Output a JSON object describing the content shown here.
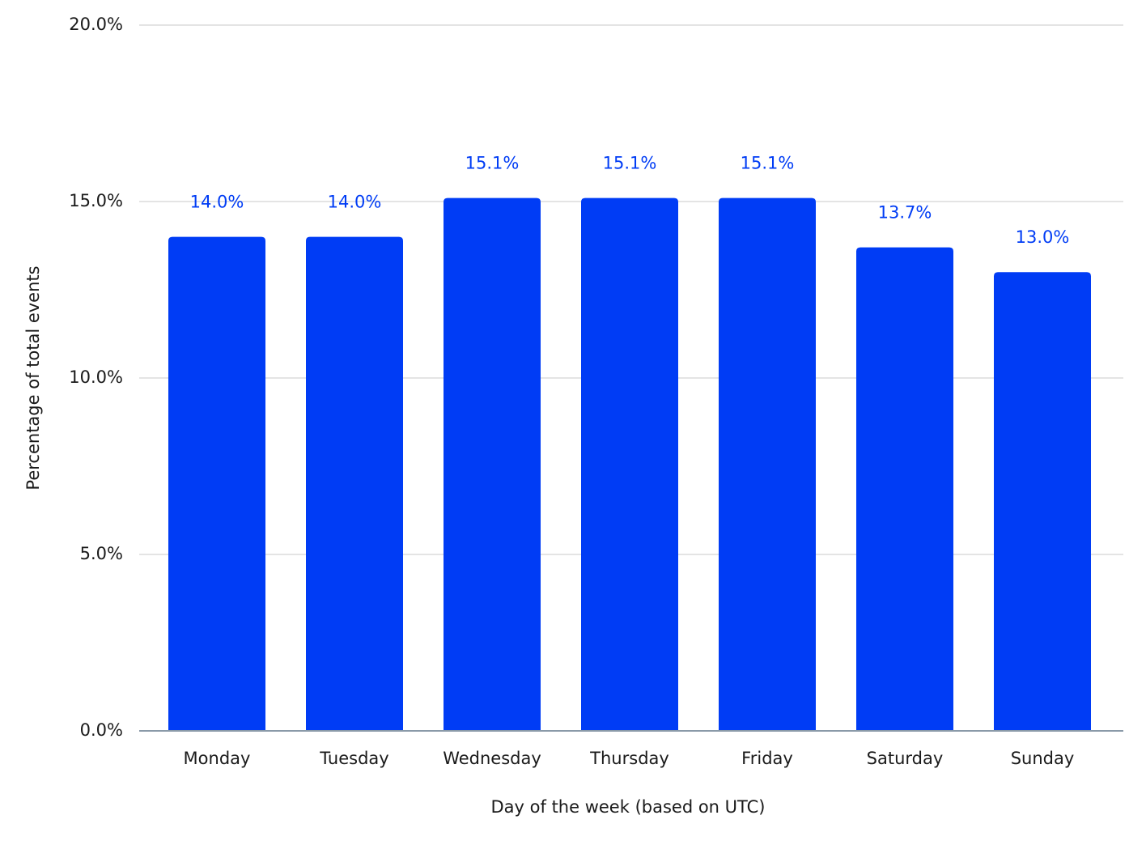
{
  "chart_data": {
    "type": "bar",
    "x_label": "Day of the week (based on UTC)",
    "y_label": "Percentage of total events",
    "categories": [
      "Monday",
      "Tuesday",
      "Wednesday",
      "Thursday",
      "Friday",
      "Saturday",
      "Sunday"
    ],
    "values": [
      14.0,
      14.0,
      15.1,
      15.1,
      15.1,
      13.7,
      13.0
    ],
    "value_labels": [
      "14.0%",
      "14.0%",
      "15.1%",
      "15.1%",
      "15.1%",
      "13.7%",
      "13.0%"
    ],
    "color": "#003cf5",
    "ylim": [
      0,
      20
    ],
    "yticks": [
      {
        "value": 0,
        "label": "0.0%"
      },
      {
        "value": 5,
        "label": "5.0%"
      },
      {
        "value": 10,
        "label": "10.0%"
      },
      {
        "value": 15,
        "label": "15.0%"
      },
      {
        "value": 20,
        "label": "20.0%"
      }
    ],
    "grid": true
  }
}
